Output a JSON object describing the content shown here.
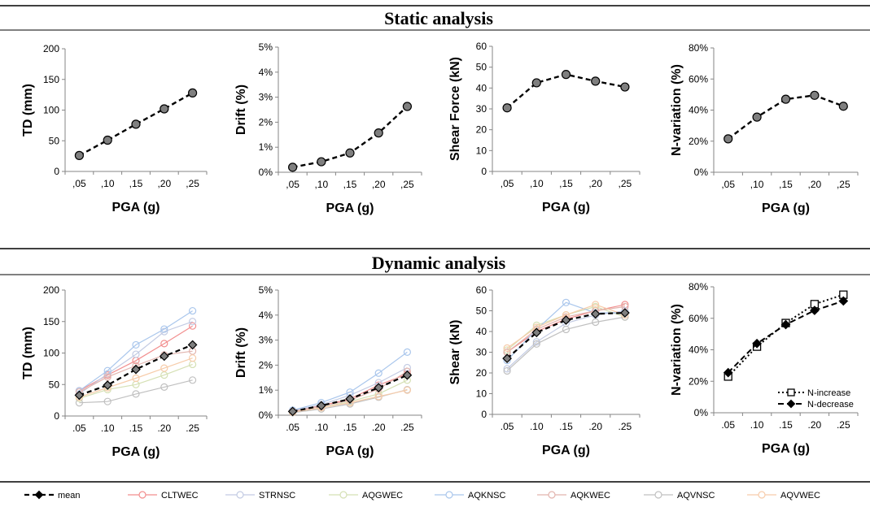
{
  "sections": {
    "static": "Static analysis",
    "dynamic": "Dynamic analysis"
  },
  "colors": {
    "mean": "#000000",
    "marker_fill": "#7f7f7f",
    "N-increase": "#000000",
    "N-decrease": "#000000"
  },
  "series_legend": [
    {
      "name": "mean",
      "color": "#000000"
    },
    {
      "name": "CLTWEC",
      "color": "#f28e8e"
    },
    {
      "name": "STRNSC",
      "color": "#c3cbe3"
    },
    {
      "name": "AQGWEC",
      "color": "#d5e0b4"
    },
    {
      "name": "AQKNSC",
      "color": "#a9c6ec"
    },
    {
      "name": "AQKWEC",
      "color": "#e2b4ae"
    },
    {
      "name": "AQVNSC",
      "color": "#c0c0c0"
    },
    {
      "name": "AQVWEC",
      "color": "#f7ccaa"
    }
  ],
  "chart_data": [
    {
      "id": "s1",
      "type": "line",
      "xlabel": "PGA (g)",
      "ylabel": "TD (mm)",
      "categories": [
        ",05",
        ",10",
        ",15",
        ",20",
        ",25"
      ],
      "y_ticks": [
        "0",
        "50",
        "100",
        "150",
        "200"
      ],
      "ylim": [
        0,
        200
      ],
      "series": [
        {
          "name": "mean",
          "style": "dash-circle",
          "values": [
            26,
            51,
            77,
            102,
            128
          ]
        }
      ]
    },
    {
      "id": "s2",
      "type": "line",
      "xlabel": "PGA (g)",
      "ylabel": "Drift (%)",
      "categories": [
        ",05",
        ",10",
        ",15",
        ",20",
        ",25"
      ],
      "y_ticks": [
        "0%",
        "1%",
        "2%",
        "3%",
        "4%",
        "5%"
      ],
      "ylim": [
        0,
        5
      ],
      "series": [
        {
          "name": "mean",
          "style": "dash-circle",
          "values": [
            0.2,
            0.42,
            0.77,
            1.57,
            2.63
          ]
        }
      ]
    },
    {
      "id": "s3",
      "type": "line",
      "xlabel": "PGA (g)",
      "ylabel": "Shear Force (kN)",
      "categories": [
        ",05",
        ",10",
        ",15",
        ",20",
        ",25"
      ],
      "y_ticks": [
        "0",
        "10",
        "20",
        "30",
        "40",
        "50",
        "60"
      ],
      "ylim": [
        0,
        60
      ],
      "series": [
        {
          "name": "mean",
          "style": "dash-circle",
          "values": [
            30.5,
            42.5,
            46.5,
            43.3,
            40.5
          ]
        }
      ]
    },
    {
      "id": "s4",
      "type": "line",
      "xlabel": "PGA (g)",
      "ylabel": "N-variation (%)",
      "categories": [
        ",05",
        ",10",
        ",15",
        ",20",
        ",25"
      ],
      "y_ticks": [
        "0%",
        "20%",
        "40%",
        "60%",
        "80%"
      ],
      "ylim": [
        0,
        80
      ],
      "series": [
        {
          "name": "mean",
          "style": "dash-circle",
          "values": [
            21.5,
            35.5,
            47,
            49.5,
            42.5
          ]
        }
      ]
    },
    {
      "id": "d1",
      "type": "line",
      "xlabel": "PGA (g)",
      "ylabel": "TD (mm)",
      "categories": [
        ".05",
        ".10",
        ".15",
        ".20",
        ".25"
      ],
      "y_ticks": [
        "0",
        "50",
        "100",
        "150",
        "200"
      ],
      "ylim": [
        0,
        200
      ],
      "series": [
        {
          "name": "CLTWEC",
          "values": [
            40,
            65,
            88,
            115,
            143
          ]
        },
        {
          "name": "STRNSC",
          "values": [
            35,
            67,
            98,
            134,
            150
          ]
        },
        {
          "name": "AQGWEC",
          "values": [
            28,
            42,
            50,
            65,
            82
          ]
        },
        {
          "name": "AQKNSC",
          "values": [
            40,
            72,
            113,
            138,
            167
          ]
        },
        {
          "name": "AQKWEC",
          "values": [
            38,
            62,
            80,
            97,
            103
          ]
        },
        {
          "name": "AQVNSC",
          "values": [
            21,
            23,
            35,
            46,
            57
          ]
        },
        {
          "name": "AQVWEC",
          "values": [
            30,
            45,
            60,
            76,
            92
          ]
        },
        {
          "name": "mean",
          "style": "mean",
          "values": [
            33,
            49,
            74,
            95,
            113
          ]
        }
      ]
    },
    {
      "id": "d2",
      "type": "line",
      "xlabel": "PGA (g)",
      "ylabel": "Drift (%)",
      "categories": [
        ".05",
        ".10",
        ".15",
        ".20",
        ".25"
      ],
      "y_ticks": [
        "0%",
        "1%",
        "2%",
        "3%",
        "4%",
        "5%"
      ],
      "ylim": [
        0,
        5
      ],
      "series": [
        {
          "name": "CLTWEC",
          "values": [
            0.15,
            0.38,
            0.65,
            1.2,
            1.65
          ]
        },
        {
          "name": "STRNSC",
          "values": [
            0.18,
            0.42,
            0.8,
            1.3,
            1.9
          ]
        },
        {
          "name": "AQGWEC",
          "values": [
            0.12,
            0.3,
            0.55,
            0.85,
            1.4
          ]
        },
        {
          "name": "AQKNSC",
          "values": [
            0.2,
            0.5,
            0.92,
            1.68,
            2.52
          ]
        },
        {
          "name": "AQKWEC",
          "values": [
            0.15,
            0.35,
            0.6,
            1.05,
            1.75
          ]
        },
        {
          "name": "AQVNSC",
          "values": [
            0.1,
            0.25,
            0.45,
            0.72,
            1.02
          ]
        },
        {
          "name": "AQVWEC",
          "values": [
            0.12,
            0.3,
            0.5,
            0.75,
            1.0
          ]
        },
        {
          "name": "mean",
          "style": "mean",
          "values": [
            0.15,
            0.38,
            0.65,
            1.1,
            1.6
          ]
        }
      ]
    },
    {
      "id": "d3",
      "type": "line",
      "xlabel": "PGA (g)",
      "ylabel": "Shear (kN)",
      "categories": [
        ".05",
        ".10",
        ".15",
        ".20",
        ".25"
      ],
      "y_ticks": [
        "0",
        "10",
        "20",
        "30",
        "40",
        "50",
        "60"
      ],
      "ylim": [
        0,
        60
      ],
      "series": [
        {
          "name": "CLTWEC",
          "values": [
            30,
            40,
            46,
            50,
            53
          ]
        },
        {
          "name": "STRNSC",
          "values": [
            22,
            35,
            44,
            48,
            50
          ]
        },
        {
          "name": "AQGWEC",
          "values": [
            31,
            43,
            48,
            52,
            47
          ]
        },
        {
          "name": "AQKNSC",
          "values": [
            26,
            41,
            54,
            49,
            49
          ]
        },
        {
          "name": "AQKWEC",
          "values": [
            30,
            41,
            47,
            50,
            52
          ]
        },
        {
          "name": "AQVNSC",
          "values": [
            21,
            34,
            41,
            44.5,
            47
          ]
        },
        {
          "name": "AQVWEC",
          "values": [
            32,
            42,
            48,
            53,
            48
          ]
        },
        {
          "name": "mean",
          "style": "mean",
          "values": [
            27,
            39.5,
            45.5,
            48.5,
            49
          ]
        }
      ]
    },
    {
      "id": "d4",
      "type": "line",
      "xlabel": "PGA (g)",
      "ylabel": "N-variation (%)",
      "categories": [
        ".05",
        ".10",
        ".15",
        ".20",
        ".25"
      ],
      "y_ticks": [
        "0%",
        "20%",
        "40%",
        "60%",
        "80%"
      ],
      "ylim": [
        0,
        80
      ],
      "legend": "bottom-right",
      "series": [
        {
          "name": "N-increase",
          "style": "dot-square",
          "values": [
            23,
            42,
            57,
            69,
            75
          ]
        },
        {
          "name": "N-decrease",
          "style": "dash-diamond",
          "values": [
            25.5,
            44,
            56,
            65,
            71
          ]
        }
      ]
    }
  ]
}
